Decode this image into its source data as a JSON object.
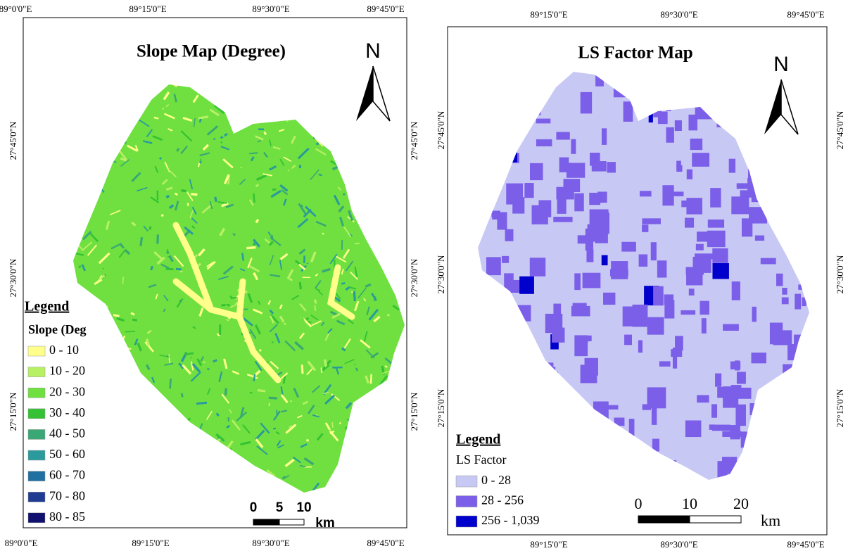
{
  "panels": [
    {
      "title": "Slope Map (Degree)",
      "north": "N",
      "top_labels": [
        "89°0'0\"E",
        "89°15'0\"E",
        "89°30'0\"E",
        "89°45'0\"E"
      ],
      "bottom_labels": [
        "89°0'0\"E",
        "89°15'0\"E",
        "89°30'0\"E",
        "89°45'0\"E"
      ],
      "left_labels": [
        "27°45'0\"N",
        "27°30'0\"N",
        "27°15'0\"N"
      ],
      "right_labels": [
        "27°45'0\"N",
        "27°30'0\"N",
        "27°15'0\"N"
      ],
      "legend": {
        "title": "Legend",
        "subtitle": "Slope (Deg",
        "items": [
          {
            "label": "0 - 10",
            "color": "#ffff8c"
          },
          {
            "label": "10 - 20",
            "color": "#b8f064"
          },
          {
            "label": "20 - 30",
            "color": "#6fe040"
          },
          {
            "label": "30 - 40",
            "color": "#34c234"
          },
          {
            "label": "40 - 50",
            "color": "#3aa874"
          },
          {
            "label": "50 - 60",
            "color": "#2a9a9c"
          },
          {
            "label": "60 - 70",
            "color": "#2070a2"
          },
          {
            "label": "70 - 80",
            "color": "#203c92"
          },
          {
            "label": "80 - 85",
            "color": "#10106e"
          }
        ]
      },
      "scale": {
        "ticks": [
          "0",
          "5",
          "10"
        ],
        "unit": "km"
      }
    },
    {
      "title": "LS Factor Map",
      "north": "N",
      "top_labels": [
        "89°15'0\"E",
        "89°30'0\"E",
        "89°45'0\"E"
      ],
      "bottom_labels": [
        "89°15'0\"E",
        "89°30'0\"E",
        "89°45'0\"E"
      ],
      "left_labels": [
        "27°45'0\"N",
        "27°30'0\"N",
        "27°15'0\"N"
      ],
      "right_labels": [
        "27°45'0\"N",
        "27°30'0\"N",
        "27°15'0\"N"
      ],
      "legend": {
        "title": "Legend",
        "subtitle": "LS Factor",
        "items": [
          {
            "label": "0 - 28",
            "color": "#c8c8f5"
          },
          {
            "label": "28 - 256",
            "color": "#7b5fe8"
          },
          {
            "label": "256 - 1,039",
            "color": "#0000cc"
          }
        ]
      },
      "scale": {
        "ticks": [
          "0",
          "10",
          "20"
        ],
        "unit": "km"
      }
    }
  ]
}
